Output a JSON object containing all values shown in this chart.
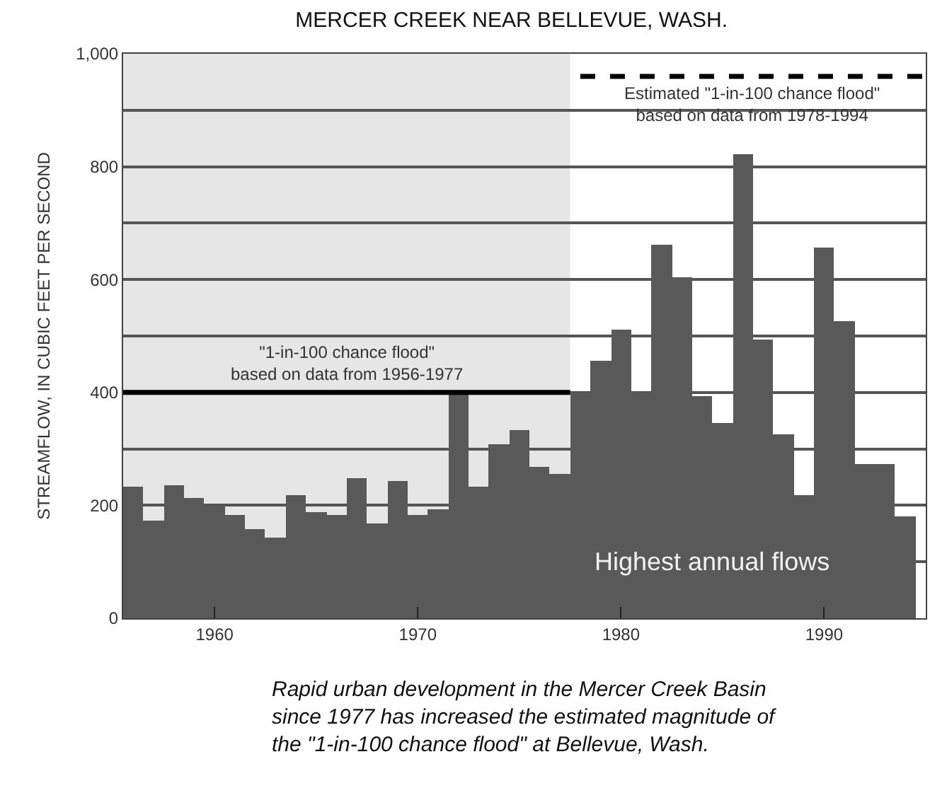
{
  "chart_data": {
    "type": "bar",
    "title": "MERCER CREEK NEAR BELLEVUE, WASH.",
    "ylabel": "STREAMFLOW, IN CUBIC FEET PER SECOND",
    "x": [
      1956,
      1957,
      1958,
      1959,
      1960,
      1961,
      1962,
      1963,
      1964,
      1965,
      1966,
      1967,
      1968,
      1969,
      1970,
      1971,
      1972,
      1973,
      1974,
      1975,
      1976,
      1977,
      1978,
      1979,
      1980,
      1981,
      1982,
      1983,
      1984,
      1985,
      1986,
      1987,
      1988,
      1989,
      1990,
      1991,
      1992,
      1993,
      1994
    ],
    "series": [
      {
        "color": "#595959",
        "values": [
          234,
          172,
          236,
          213,
          197,
          184,
          159,
          142,
          218,
          188,
          184,
          247,
          167,
          243,
          184,
          192,
          400,
          234,
          308,
          333,
          268,
          255,
          402,
          456,
          512,
          402,
          661,
          603,
          393,
          347,
          822,
          494,
          326,
          218,
          657,
          526,
          272,
          272,
          180
        ]
      },
      {
        "type": "line",
        "color": "#000000",
        "line_style": "solid",
        "x": [
          1955.5,
          1977.5
        ],
        "values": [
          400,
          400
        ]
      },
      {
        "type": "line",
        "color": "#000000",
        "line_style": "dashed",
        "x": [
          1978,
          1995
        ],
        "values": [
          960,
          960
        ]
      }
    ],
    "xlim": [
      1955.5,
      1995
    ],
    "xticks": [
      1960,
      1970,
      1980,
      1990
    ],
    "ylim": [
      0,
      1000
    ],
    "yticks": [
      0,
      {
        "value": 100,
        "label": null
      },
      200,
      {
        "value": 300,
        "label": null
      },
      400,
      {
        "value": 500,
        "label": null
      },
      600,
      {
        "value": 700,
        "label": null
      },
      800,
      {
        "value": 900,
        "label": null
      },
      {
        "value": 1000,
        "label": "1,000"
      }
    ],
    "grid": "y",
    "bands": [
      {
        "axis": "x",
        "from": 1955.5,
        "to": 1977.5,
        "color": "#e6e6e6"
      }
    ],
    "annotations": [
      {
        "text": "\"1-in-100 chance flood\"\nbased on data from 1956-1977",
        "x": 1966.5,
        "y": 400
      },
      {
        "text": "Estimated \"1-in-100 chance flood\"\nbased on data from 1978-1994",
        "x": 1986.5,
        "y": 960
      },
      {
        "text": "Highest annual flows",
        "x": 1984.5,
        "y": 100
      },
      "Rapid urban development in the Mercer Creek Basin\nsince 1977 has increased the estimated magnitude of\nthe \"1-in-100 chance flood\" at Bellevue, Wash."
    ]
  }
}
